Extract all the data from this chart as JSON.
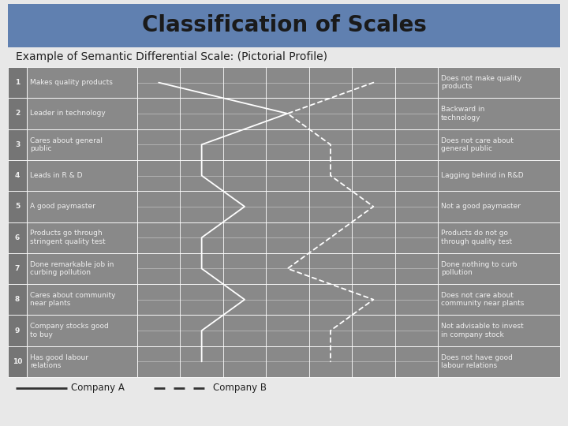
{
  "title": "Classification of Scales",
  "subtitle": "Example of Semantic Differential Scale: (Pictorial Profile)",
  "title_bg_color": "#6080b0",
  "title_text_color": "#1a1a1a",
  "table_bg_color": "#898989",
  "table_line_color": "#ffffff",
  "text_color": "#f0f0f0",
  "body_bg_color": "#e8e8e8",
  "rows": [
    {
      "num": "1",
      "left": "Makes quality products",
      "right": "Does not make quality\nproducts"
    },
    {
      "num": "2",
      "left": "Leader in technology",
      "right": "Backward in\ntechnology"
    },
    {
      "num": "3",
      "left": "Cares about general\npublic",
      "right": "Does not care about\ngeneral public"
    },
    {
      "num": "4",
      "left": "Leads in R & D",
      "right": "Lagging behind in R&D"
    },
    {
      "num": "5",
      "left": "A good paymaster",
      "right": "Not a good paymaster"
    },
    {
      "num": "6",
      "left": "Products go through\nstringent quality test",
      "right": "Products do not go\nthrough quality test"
    },
    {
      "num": "7",
      "left": "Done remarkable job in\ncurbing pollution",
      "right": "Done nothing to curb\npollution"
    },
    {
      "num": "8",
      "left": "Cares about community\nnear plants",
      "right": "Does not care about\ncommunity near plants"
    },
    {
      "num": "9",
      "left": "Company stocks good\nto buy",
      "right": "Not advisable to invest\nin company stock"
    },
    {
      "num": "10",
      "left": "Has good labour\nrelations",
      "right": "Does not have good\nlabour relations"
    }
  ],
  "n_scale_cols": 7,
  "company_a_points": [
    1,
    4,
    2,
    2,
    3,
    2,
    2,
    3,
    2,
    2
  ],
  "company_b_points": [
    6,
    4,
    5,
    5,
    6,
    5,
    4,
    6,
    5,
    5
  ],
  "legend_company_a": "Company A",
  "legend_company_b": "Company B"
}
